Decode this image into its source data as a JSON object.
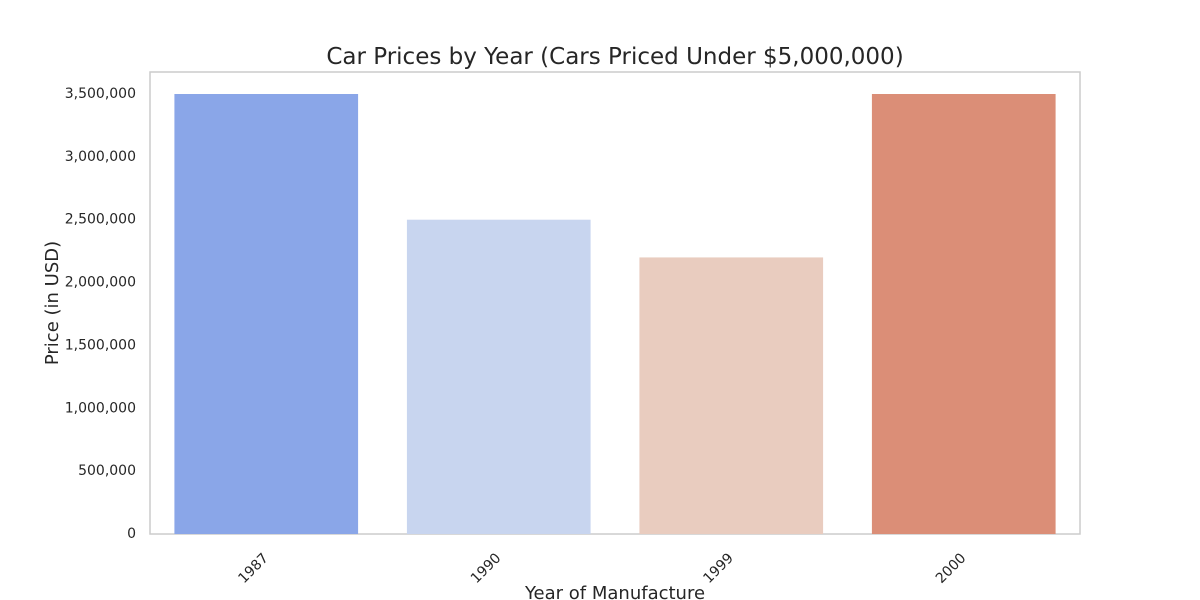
{
  "chart_data": {
    "type": "bar",
    "title": "Car Prices by Year (Cars Priced Under $5,000,000)",
    "xlabel": "Year of Manufacture",
    "ylabel": "Price (in USD)",
    "categories": [
      "1987",
      "1990",
      "1999",
      "2000"
    ],
    "values": [
      3500000,
      2500000,
      2200000,
      3500000
    ],
    "colors": [
      "#8aa6e8",
      "#c8d5ef",
      "#e9ccbf",
      "#db8e77"
    ],
    "ylim": [
      0,
      3675000
    ],
    "yticks": [
      0,
      500000,
      1000000,
      1500000,
      2000000,
      2500000,
      3000000,
      3500000
    ],
    "ytick_labels": [
      "0",
      "500,000",
      "1,000,000",
      "1,500,000",
      "2,000,000",
      "2,500,000",
      "3,000,000",
      "3,500,000"
    ],
    "grid": false,
    "legend": false
  }
}
